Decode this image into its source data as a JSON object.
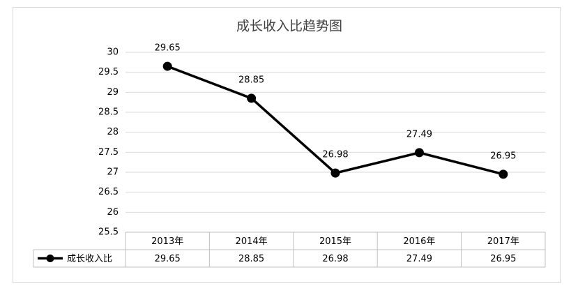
{
  "chart_data": {
    "type": "line",
    "title": "成长收入比趋势图",
    "categories": [
      "2013年",
      "2014年",
      "2015年",
      "2016年",
      "2017年"
    ],
    "series": [
      {
        "name": "成长收入比",
        "color": "#000000",
        "values": [
          29.65,
          28.85,
          26.98,
          27.49,
          26.95
        ]
      }
    ],
    "ylim": [
      25.5,
      30
    ],
    "yticks": [
      25.5,
      26,
      26.5,
      27,
      27.5,
      28,
      28.5,
      29,
      29.5,
      30
    ],
    "grid": true,
    "data_labels": true,
    "data_table": true
  }
}
